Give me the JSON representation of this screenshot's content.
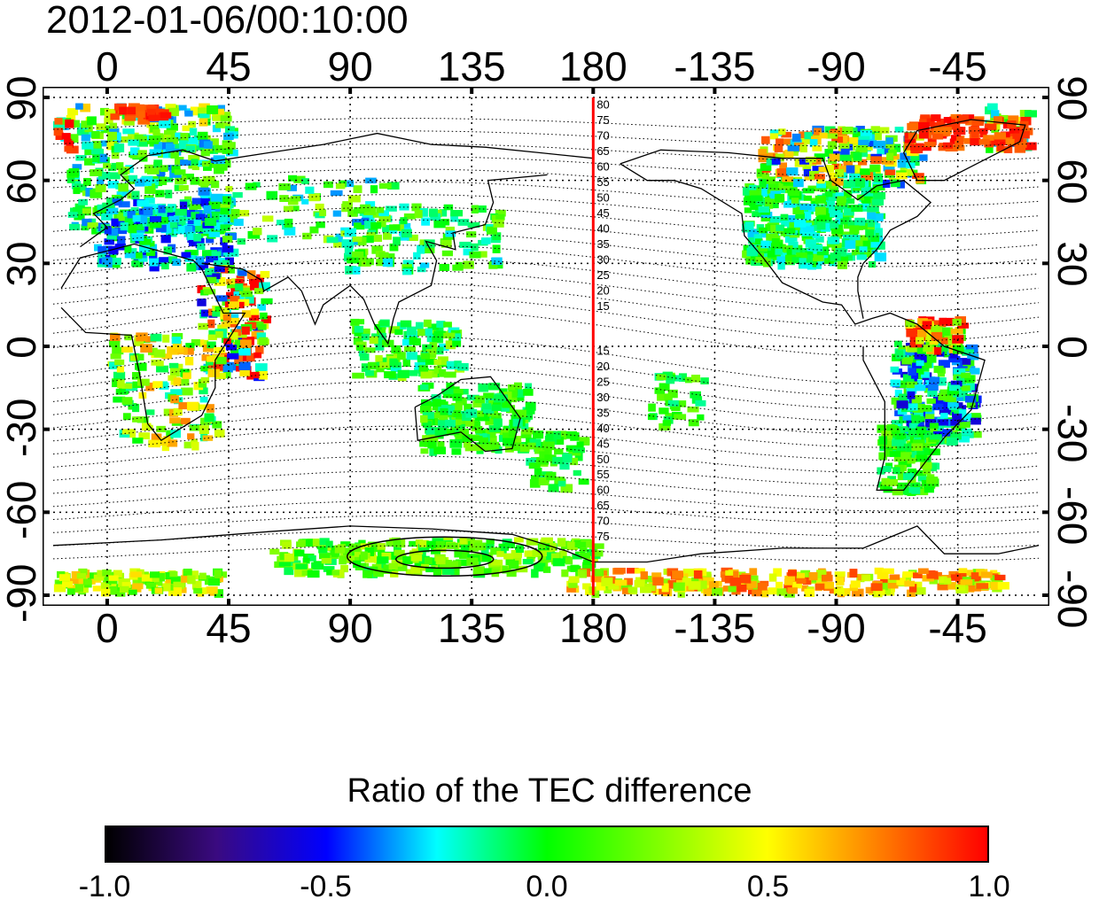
{
  "title": "2012-01-06/00:10:00",
  "chart_data": {
    "type": "heatmap",
    "title": "2012-01-06/00:10:00",
    "x_ticks_top": [
      "0",
      "45",
      "90",
      "135",
      "180",
      "-135",
      "-90",
      "-45"
    ],
    "x_ticks_bottom": [
      "0",
      "45",
      "90",
      "135",
      "180",
      "-135",
      "-90",
      "-45"
    ],
    "y_ticks_left": [
      "90",
      "60",
      "30",
      "0",
      "-30",
      "-60",
      "-90"
    ],
    "y_ticks_right": [
      "90",
      "60",
      "30",
      "0",
      "-30",
      "-60",
      "-90"
    ],
    "xlim": [
      -20,
      345
    ],
    "ylim": [
      -90,
      90
    ],
    "meridian_line": {
      "longitude": 180,
      "color": "#ff0000"
    },
    "contour_labels_north": [
      "80",
      "75",
      "70",
      "65",
      "60",
      "55",
      "50",
      "45",
      "40",
      "35",
      "30",
      "25",
      "20",
      "15"
    ],
    "contour_labels_south": [
      "15",
      "20",
      "25",
      "30",
      "35",
      "40",
      "45",
      "50",
      "55",
      "60",
      "65",
      "70",
      "75"
    ],
    "colorbar": {
      "title": "Ratio of the TEC difference",
      "range": [
        -1.0,
        1.0
      ],
      "tick_labels": [
        "-1.0",
        "-0.5",
        "0.0",
        "0.5",
        "1.0"
      ],
      "colors": [
        "#000000",
        "#3a0a80",
        "#0000ff",
        "#00ffff",
        "#00ff00",
        "#7fff00",
        "#ffff00",
        "#ff8000",
        "#ff0000"
      ]
    }
  }
}
